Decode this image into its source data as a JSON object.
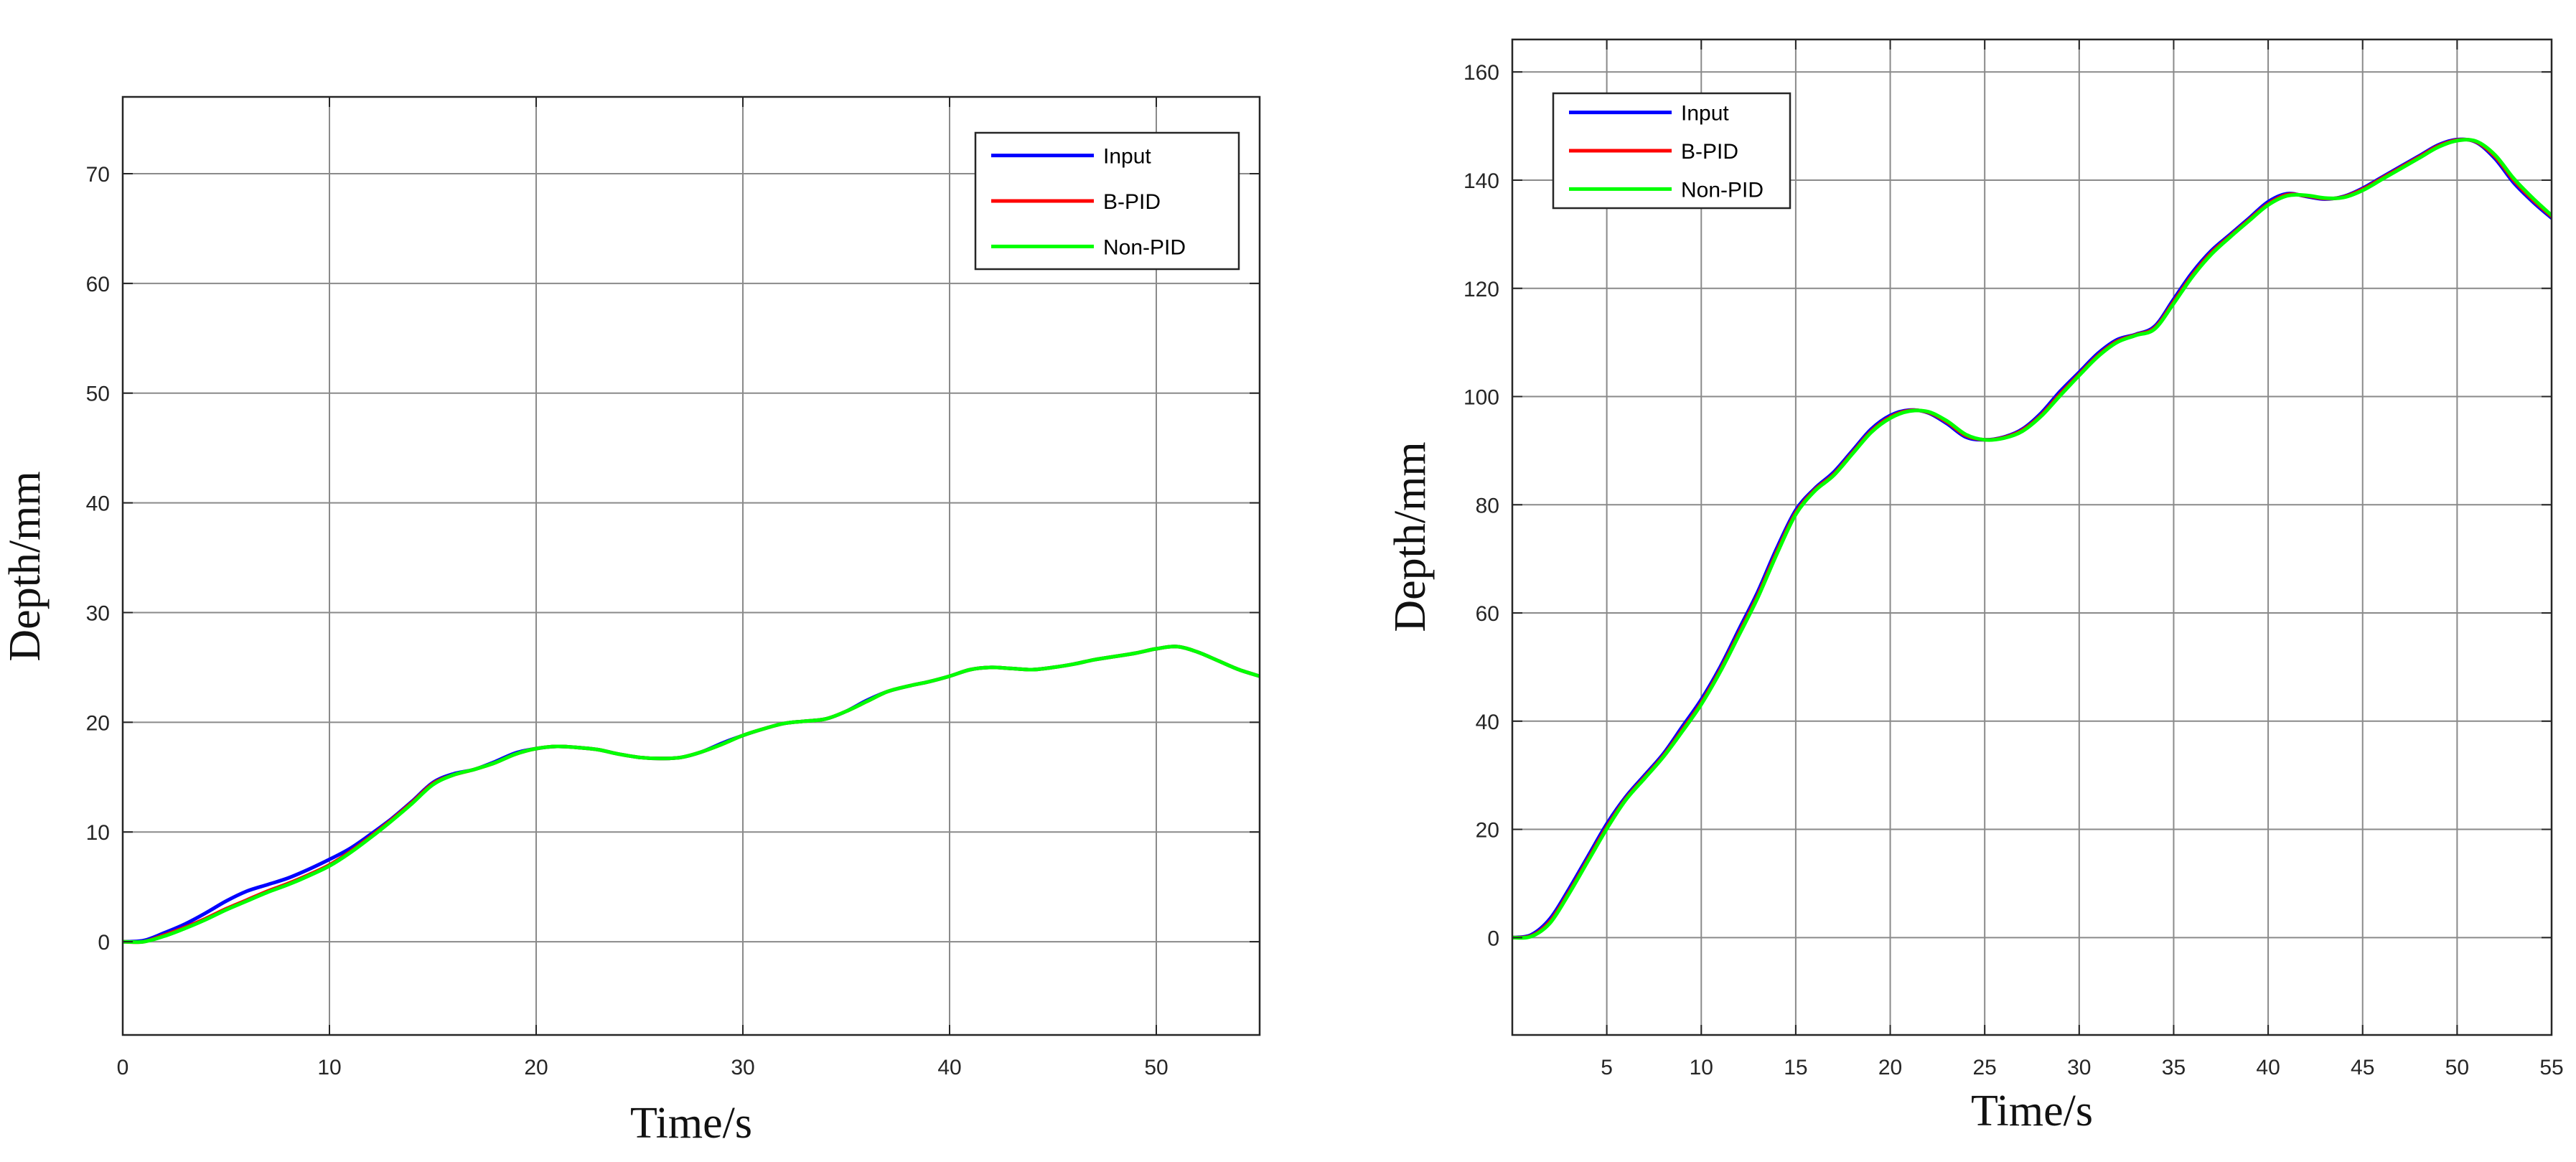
{
  "chart_data": [
    {
      "type": "line",
      "title": "",
      "xlabel": "Time/s",
      "ylabel": "Depth/mm",
      "xlim": [
        0,
        55
      ],
      "ylim": [
        -8.5,
        77
      ],
      "xticks": [
        0,
        10,
        20,
        30,
        40,
        50
      ],
      "yticks": [
        0,
        10,
        20,
        30,
        40,
        50,
        60,
        70
      ],
      "grid": true,
      "legend_position": "top-right",
      "series": [
        {
          "name": "Input",
          "color": "#0000ff",
          "x": [
            0,
            1,
            2,
            3,
            4,
            5,
            6,
            7,
            8,
            9,
            10,
            11,
            12,
            13,
            14,
            15,
            16,
            17,
            18,
            19,
            20,
            21,
            22,
            23,
            24,
            25,
            26,
            27,
            28,
            29,
            30,
            31,
            32,
            33,
            34,
            35,
            36,
            37,
            38,
            39,
            40,
            41,
            42,
            43,
            44,
            45,
            46,
            47,
            48,
            49,
            50,
            51,
            52,
            53,
            54,
            55
          ],
          "y": [
            0,
            0.1,
            0.8,
            1.6,
            2.6,
            3.7,
            4.6,
            5.2,
            5.8,
            6.6,
            7.5,
            8.5,
            9.8,
            11.2,
            12.8,
            14.5,
            15.3,
            15.7,
            16.4,
            17.2,
            17.6,
            17.8,
            17.7,
            17.5,
            17.1,
            16.8,
            16.7,
            16.8,
            17.3,
            18.1,
            18.8,
            19.4,
            19.9,
            20.1,
            20.3,
            21.0,
            22.0,
            22.8,
            23.3,
            23.7,
            24.2,
            24.8,
            25.0,
            24.9,
            24.8,
            25.0,
            25.3,
            25.7,
            26.0,
            26.3,
            26.7,
            26.9,
            26.4,
            25.6,
            24.8,
            24.2
          ]
        },
        {
          "name": "B-PID",
          "color": "#ff0000",
          "x": [
            0,
            1,
            2,
            3,
            4,
            5,
            6,
            7,
            8,
            9,
            10,
            11,
            12,
            13,
            14,
            15,
            16,
            17,
            18,
            19,
            20,
            21,
            22,
            23,
            24,
            25,
            26,
            27,
            28,
            29,
            30,
            31,
            32,
            33,
            34,
            35,
            36,
            37,
            38,
            39,
            40,
            41,
            42,
            43,
            44,
            45,
            46,
            47,
            48,
            49,
            50,
            51,
            52,
            53,
            54,
            55
          ],
          "y": [
            0,
            0,
            0.6,
            1.3,
            2.1,
            3.0,
            3.8,
            4.6,
            5.3,
            6.1,
            7.0,
            8.2,
            9.6,
            11.1,
            12.7,
            14.4,
            15.2,
            15.7,
            16.3,
            17.1,
            17.6,
            17.8,
            17.7,
            17.5,
            17.1,
            16.8,
            16.7,
            16.8,
            17.3,
            18.0,
            18.8,
            19.4,
            19.9,
            20.1,
            20.3,
            21.0,
            21.9,
            22.8,
            23.3,
            23.7,
            24.2,
            24.8,
            25.0,
            24.9,
            24.8,
            25.0,
            25.3,
            25.7,
            26.0,
            26.3,
            26.7,
            26.9,
            26.4,
            25.6,
            24.8,
            24.2
          ]
        },
        {
          "name": "Non-PID",
          "color": "#00ff00",
          "x": [
            0,
            1,
            2,
            3,
            4,
            5,
            6,
            7,
            8,
            9,
            10,
            11,
            12,
            13,
            14,
            15,
            16,
            17,
            18,
            19,
            20,
            21,
            22,
            23,
            24,
            25,
            26,
            27,
            28,
            29,
            30,
            31,
            32,
            33,
            34,
            35,
            36,
            37,
            38,
            39,
            40,
            41,
            42,
            43,
            44,
            45,
            46,
            47,
            48,
            49,
            50,
            51,
            52,
            53,
            54,
            55
          ],
          "y": [
            0,
            0,
            0.5,
            1.2,
            2.0,
            2.9,
            3.7,
            4.5,
            5.2,
            6.0,
            6.9,
            8.1,
            9.5,
            11.0,
            12.6,
            14.3,
            15.2,
            15.7,
            16.3,
            17.1,
            17.6,
            17.8,
            17.7,
            17.5,
            17.1,
            16.8,
            16.7,
            16.8,
            17.3,
            18.0,
            18.8,
            19.4,
            19.9,
            20.1,
            20.3,
            21.0,
            21.9,
            22.8,
            23.3,
            23.7,
            24.2,
            24.8,
            25.0,
            24.9,
            24.8,
            25.0,
            25.3,
            25.7,
            26.0,
            26.3,
            26.7,
            26.9,
            26.4,
            25.6,
            24.8,
            24.2
          ]
        }
      ]
    },
    {
      "type": "line",
      "title": "",
      "xlabel": "Time/s",
      "ylabel": "Depth/mm",
      "xlim": [
        0,
        55
      ],
      "ylim": [
        -18,
        166
      ],
      "xticks": [
        5,
        10,
        15,
        20,
        25,
        30,
        35,
        40,
        45,
        50,
        55
      ],
      "yticks": [
        0,
        20,
        40,
        60,
        80,
        100,
        120,
        140,
        160
      ],
      "grid": true,
      "legend_position": "top-left",
      "series": [
        {
          "name": "Input",
          "color": "#0000ff",
          "x": [
            0,
            1,
            2,
            3,
            4,
            5,
            6,
            7,
            8,
            9,
            10,
            11,
            12,
            13,
            14,
            15,
            16,
            17,
            18,
            19,
            20,
            21,
            22,
            23,
            24,
            25,
            26,
            27,
            28,
            29,
            30,
            31,
            32,
            33,
            34,
            35,
            36,
            37,
            38,
            39,
            40,
            41,
            42,
            43,
            44,
            45,
            46,
            47,
            48,
            49,
            50,
            51,
            52,
            53,
            54,
            55
          ],
          "y": [
            0,
            0.5,
            3.5,
            9,
            15,
            21,
            26,
            30,
            34,
            39,
            44,
            50,
            57,
            64,
            72,
            79,
            83,
            86,
            90,
            94,
            96.5,
            97.5,
            97,
            95,
            92.5,
            92,
            92.5,
            94,
            97,
            101,
            104.5,
            108,
            110.5,
            111.5,
            113,
            118,
            123,
            127,
            130,
            133,
            136,
            137.5,
            137,
            136.5,
            137,
            138.5,
            140.5,
            142.5,
            144.5,
            146.5,
            147.5,
            147,
            144,
            139.5,
            136,
            133
          ]
        },
        {
          "name": "B-PID",
          "color": "#ff0000",
          "x": [
            0,
            1,
            2,
            3,
            4,
            5,
            6,
            7,
            8,
            9,
            10,
            11,
            12,
            13,
            14,
            15,
            16,
            17,
            18,
            19,
            20,
            21,
            22,
            23,
            24,
            25,
            26,
            27,
            28,
            29,
            30,
            31,
            32,
            33,
            34,
            35,
            36,
            37,
            38,
            39,
            40,
            41,
            42,
            43,
            44,
            45,
            46,
            47,
            48,
            49,
            50,
            51,
            52,
            53,
            54,
            55
          ],
          "y": [
            0,
            0.3,
            3.0,
            8.4,
            14.4,
            20.4,
            25.6,
            29.6,
            33.6,
            38.4,
            43.4,
            49.4,
            56.3,
            63.3,
            71.3,
            78.5,
            82.7,
            85.6,
            89.6,
            93.6,
            96.2,
            97.4,
            97.1,
            95.3,
            92.8,
            92.0,
            92.4,
            93.8,
            96.6,
            100.5,
            104.1,
            107.6,
            110.2,
            111.4,
            112.7,
            117.5,
            122.5,
            126.6,
            129.7,
            132.7,
            135.6,
            137.3,
            137.1,
            136.6,
            136.9,
            138.3,
            140.3,
            142.3,
            144.3,
            146.3,
            147.4,
            147.1,
            144.4,
            140.0,
            136.4,
            133.3
          ]
        },
        {
          "name": "Non-PID",
          "color": "#00ff00",
          "x": [
            0,
            1,
            2,
            3,
            4,
            5,
            6,
            7,
            8,
            9,
            10,
            11,
            12,
            13,
            14,
            15,
            16,
            17,
            18,
            19,
            20,
            21,
            22,
            23,
            24,
            25,
            26,
            27,
            28,
            29,
            30,
            31,
            32,
            33,
            34,
            35,
            36,
            37,
            38,
            39,
            40,
            41,
            42,
            43,
            44,
            45,
            46,
            47,
            48,
            49,
            50,
            51,
            52,
            53,
            54,
            55
          ],
          "y": [
            0,
            0.2,
            2.7,
            8.1,
            14.1,
            20.1,
            25.4,
            29.4,
            33.4,
            38.1,
            43.1,
            49.1,
            55.9,
            62.9,
            70.9,
            78.2,
            82.5,
            85.4,
            89.4,
            93.4,
            96.0,
            97.3,
            97.2,
            95.5,
            93.0,
            92.0,
            92.3,
            93.6,
            96.4,
            100.2,
            103.9,
            107.4,
            110.0,
            111.3,
            112.5,
            117.2,
            122.2,
            126.3,
            129.5,
            132.5,
            135.4,
            137.1,
            137.2,
            136.7,
            136.8,
            138.1,
            140.1,
            142.1,
            144.1,
            146.1,
            147.3,
            147.2,
            144.7,
            140.3,
            136.7,
            133.5
          ]
        }
      ]
    }
  ]
}
